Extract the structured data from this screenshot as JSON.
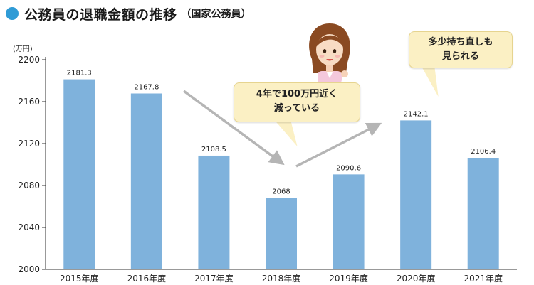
{
  "title": {
    "main": "公務員の退職金額の推移",
    "sub": "（国家公務員）"
  },
  "colors": {
    "bar": "#7fb2dc",
    "accent": "#2f9bd6",
    "arrow": "#b5b5b5",
    "bubble": "#fbf0c4"
  },
  "callouts": [
    {
      "line1": "4年で100万円近く",
      "line2": "減っている"
    },
    {
      "line1": "多少持ち直しも",
      "line2": "見られる"
    }
  ],
  "illustration": {
    "icon": "woman-presenter-icon"
  },
  "chart_data": {
    "type": "bar",
    "categories": [
      "2015年度",
      "2016年度",
      "2017年度",
      "2018年度",
      "2019年度",
      "2020年度",
      "2021年度"
    ],
    "values": [
      2181.3,
      2167.8,
      2108.5,
      2068,
      2090.6,
      2142.1,
      2106.4
    ],
    "value_labels": [
      "2181.3",
      "2167.8",
      "2108.5",
      "2068",
      "2090.6",
      "2142.1",
      "2106.4"
    ],
    "ylabel": "(万円)",
    "ylim": [
      2000,
      2200
    ],
    "yticks": [
      2000,
      2040,
      2080,
      2120,
      2160,
      2200
    ],
    "grid": false,
    "legend": "none"
  }
}
